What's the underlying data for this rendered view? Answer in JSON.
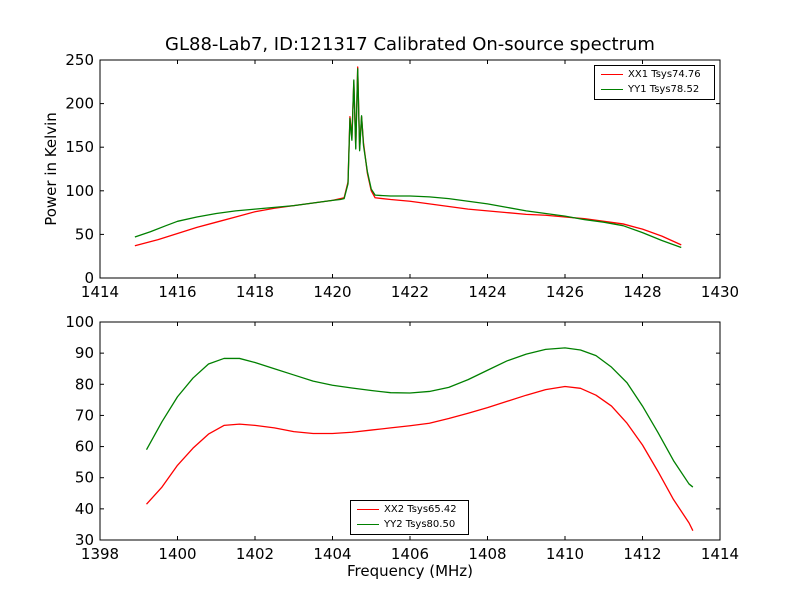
{
  "figure": {
    "title": "GL88-Lab7, ID:121317 Calibrated On-source spectrum"
  },
  "chart_data": [
    {
      "type": "line",
      "title": "GL88-Lab7, ID:121317 Calibrated On-source spectrum",
      "xlabel": "",
      "ylabel": "Power in Kelvin",
      "xlim": [
        1414,
        1430
      ],
      "ylim": [
        0,
        250
      ],
      "xticks": [
        "1414",
        "1416",
        "1418",
        "1420",
        "1422",
        "1424",
        "1426",
        "1428",
        "1430"
      ],
      "yticks": [
        "0",
        "50",
        "100",
        "150",
        "200",
        "250"
      ],
      "legend_position": "top-right",
      "series": [
        {
          "name": "XX1 Tsys74.76",
          "color": "#ff0000",
          "points": [
            [
              1414.9,
              37
            ],
            [
              1415.5,
              44
            ],
            [
              1416,
              51
            ],
            [
              1416.5,
              58
            ],
            [
              1417,
              64
            ],
            [
              1417.5,
              70
            ],
            [
              1418,
              76
            ],
            [
              1418.5,
              80
            ],
            [
              1419,
              83
            ],
            [
              1419.5,
              86
            ],
            [
              1420,
              89
            ],
            [
              1420.2,
              91
            ],
            [
              1420.3,
              92
            ],
            [
              1420.4,
              110
            ],
            [
              1420.45,
              185
            ],
            [
              1420.5,
              160
            ],
            [
              1420.55,
              225
            ],
            [
              1420.6,
              150
            ],
            [
              1420.65,
              242
            ],
            [
              1420.7,
              148
            ],
            [
              1420.75,
              185
            ],
            [
              1420.8,
              155
            ],
            [
              1420.9,
              120
            ],
            [
              1421,
              100
            ],
            [
              1421.1,
              92
            ],
            [
              1421.5,
              90
            ],
            [
              1422,
              88
            ],
            [
              1422.5,
              85
            ],
            [
              1423,
              82
            ],
            [
              1423.5,
              79
            ],
            [
              1424,
              77
            ],
            [
              1424.5,
              75
            ],
            [
              1425,
              73
            ],
            [
              1425.5,
              72
            ],
            [
              1426,
              70
            ],
            [
              1426.5,
              68
            ],
            [
              1427,
              65
            ],
            [
              1427.5,
              62
            ],
            [
              1428,
              56
            ],
            [
              1428.5,
              48
            ],
            [
              1428.9,
              40
            ],
            [
              1429,
              38
            ]
          ]
        },
        {
          "name": "YY1 Tsys78.52",
          "color": "#008000",
          "points": [
            [
              1414.9,
              47
            ],
            [
              1415.3,
              53
            ],
            [
              1415.7,
              60
            ],
            [
              1416,
              65
            ],
            [
              1416.5,
              70
            ],
            [
              1417,
              74
            ],
            [
              1417.5,
              77
            ],
            [
              1418,
              79
            ],
            [
              1418.5,
              81
            ],
            [
              1419,
              83
            ],
            [
              1419.5,
              86
            ],
            [
              1420,
              89
            ],
            [
              1420.2,
              90
            ],
            [
              1420.3,
              91
            ],
            [
              1420.4,
              108
            ],
            [
              1420.45,
              183
            ],
            [
              1420.5,
              158
            ],
            [
              1420.55,
              227
            ],
            [
              1420.6,
              148
            ],
            [
              1420.65,
              240
            ],
            [
              1420.7,
              146
            ],
            [
              1420.75,
              186
            ],
            [
              1420.8,
              152
            ],
            [
              1420.9,
              122
            ],
            [
              1421,
              102
            ],
            [
              1421.1,
              95
            ],
            [
              1421.5,
              94
            ],
            [
              1422,
              94
            ],
            [
              1422.5,
              93
            ],
            [
              1423,
              91
            ],
            [
              1423.5,
              88
            ],
            [
              1424,
              85
            ],
            [
              1424.5,
              81
            ],
            [
              1425,
              77
            ],
            [
              1425.5,
              74
            ],
            [
              1426,
              71
            ],
            [
              1426.5,
              67
            ],
            [
              1427,
              64
            ],
            [
              1427.5,
              60
            ],
            [
              1428,
              52
            ],
            [
              1428.5,
              43
            ],
            [
              1429,
              35
            ]
          ]
        }
      ]
    },
    {
      "type": "line",
      "title": "",
      "xlabel": "Frequency (MHz)",
      "ylabel": "",
      "xlim": [
        1398,
        1414
      ],
      "ylim": [
        30,
        100
      ],
      "xticks": [
        "1398",
        "1400",
        "1402",
        "1404",
        "1406",
        "1408",
        "1410",
        "1412",
        "1414"
      ],
      "yticks": [
        "30",
        "40",
        "50",
        "60",
        "70",
        "80",
        "90",
        "100"
      ],
      "legend_position": "bottom-center",
      "series": [
        {
          "name": "XX2 Tsys65.42",
          "color": "#ff0000",
          "points": [
            [
              1399.2,
              41.5
            ],
            [
              1399.6,
              47
            ],
            [
              1400,
              54
            ],
            [
              1400.4,
              59.5
            ],
            [
              1400.8,
              64
            ],
            [
              1401.2,
              66.8
            ],
            [
              1401.6,
              67.2
            ],
            [
              1402,
              66.8
            ],
            [
              1402.5,
              66
            ],
            [
              1403,
              64.8
            ],
            [
              1403.5,
              64.2
            ],
            [
              1404,
              64.2
            ],
            [
              1404.5,
              64.6
            ],
            [
              1405,
              65.3
            ],
            [
              1405.5,
              66
            ],
            [
              1406,
              66.7
            ],
            [
              1406.5,
              67.5
            ],
            [
              1407,
              69
            ],
            [
              1407.5,
              70.7
            ],
            [
              1408,
              72.5
            ],
            [
              1408.5,
              74.5
            ],
            [
              1409,
              76.5
            ],
            [
              1409.5,
              78.3
            ],
            [
              1410,
              79.3
            ],
            [
              1410.4,
              78.7
            ],
            [
              1410.8,
              76.5
            ],
            [
              1411.2,
              73
            ],
            [
              1411.6,
              67.5
            ],
            [
              1412,
              60.5
            ],
            [
              1412.4,
              52
            ],
            [
              1412.8,
              43
            ],
            [
              1413.2,
              35.5
            ],
            [
              1413.3,
              33
            ]
          ]
        },
        {
          "name": "YY2 Tsys80.50",
          "color": "#008000",
          "points": [
            [
              1399.2,
              59
            ],
            [
              1399.6,
              68
            ],
            [
              1400,
              76
            ],
            [
              1400.4,
              82
            ],
            [
              1400.8,
              86.5
            ],
            [
              1401.2,
              88.3
            ],
            [
              1401.6,
              88.3
            ],
            [
              1402,
              87
            ],
            [
              1402.5,
              85
            ],
            [
              1403,
              83
            ],
            [
              1403.5,
              81
            ],
            [
              1404,
              79.7
            ],
            [
              1404.5,
              78.8
            ],
            [
              1405,
              78
            ],
            [
              1405.5,
              77.3
            ],
            [
              1406,
              77.2
            ],
            [
              1406.5,
              77.7
            ],
            [
              1407,
              79
            ],
            [
              1407.5,
              81.5
            ],
            [
              1408,
              84.5
            ],
            [
              1408.5,
              87.5
            ],
            [
              1409,
              89.7
            ],
            [
              1409.5,
              91.2
            ],
            [
              1410,
              91.7
            ],
            [
              1410.4,
              91
            ],
            [
              1410.8,
              89.2
            ],
            [
              1411.2,
              85.5
            ],
            [
              1411.6,
              80.5
            ],
            [
              1412,
              73
            ],
            [
              1412.4,
              64.5
            ],
            [
              1412.8,
              55.5
            ],
            [
              1413.2,
              48
            ],
            [
              1413.3,
              47
            ]
          ]
        }
      ]
    }
  ]
}
